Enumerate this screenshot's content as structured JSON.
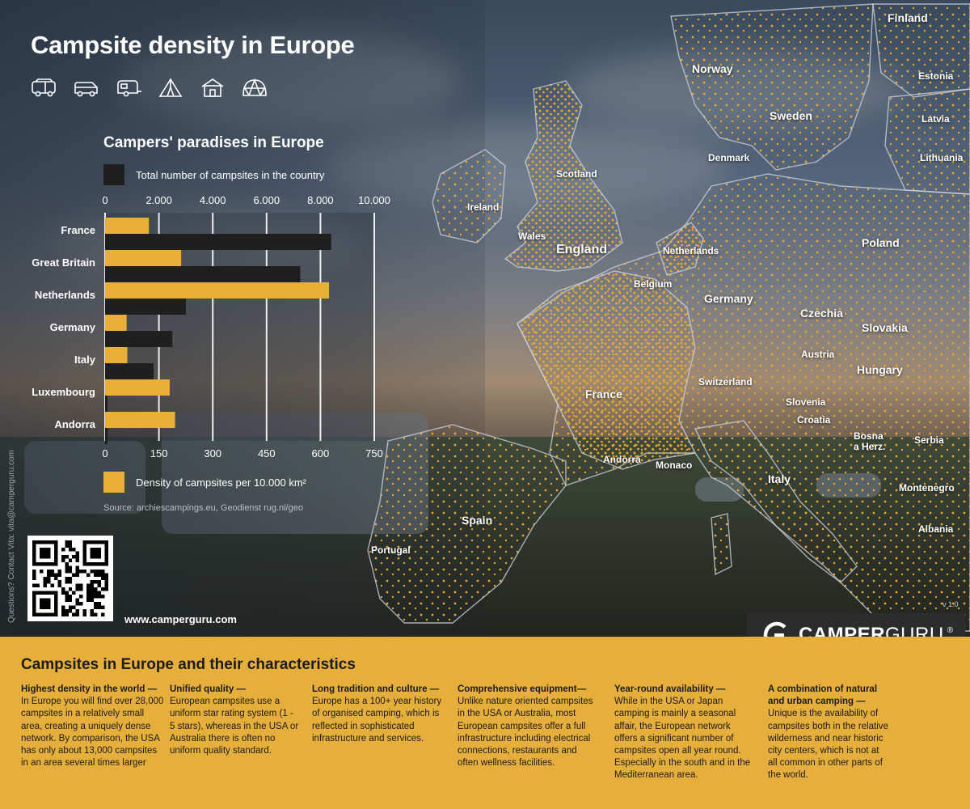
{
  "title": "Campsite density in Europe",
  "icons": [
    "camper-van-icon",
    "van-icon",
    "caravan-icon",
    "tent-icon",
    "cabin-icon",
    "glamping-dome-icon"
  ],
  "chart": {
    "title": "Campers' paradises in Europe",
    "legend_total": "Total number of campsites in the country",
    "legend_density": "Density of campsites per 10.000 km²",
    "source": "Source: archiescampings.eu, Geodienst rug.nl/geo"
  },
  "chart_data": {
    "type": "bar",
    "orientation": "horizontal",
    "categories": [
      "France",
      "Great Britain",
      "Netherlands",
      "Germany",
      "Italy",
      "Luxembourg",
      "Andorra"
    ],
    "series": [
      {
        "name": "Density of campsites per 10.000 km²",
        "color": "#e9b035",
        "values": [
          122,
          212,
          624,
          60,
          62,
          180,
          195
        ],
        "axis": "bottom"
      },
      {
        "name": "Total number of campsites in the country",
        "color": "#1f1f1f",
        "values": [
          8400,
          7250,
          3000,
          2500,
          1800,
          50,
          20
        ],
        "axis": "top"
      }
    ],
    "top_axis": {
      "ticks": [
        "0",
        "2.000",
        "4.000",
        "6.000",
        "8.000",
        "10.000"
      ],
      "range": [
        0,
        10000
      ]
    },
    "bottom_axis": {
      "ticks": [
        "0",
        "150",
        "300",
        "450",
        "600",
        "750"
      ],
      "range": [
        0,
        750
      ]
    }
  },
  "qr_url_text": "www.camperguru.com",
  "contact": "Questions? Contact Vita: vita@camperguru.com",
  "map_labels": {
    "finland": "Finland",
    "norway": "Norway",
    "estonia": "Estonia",
    "sweden": "Sweden",
    "latvia": "Latvia",
    "lithuania": "Lithuania",
    "denmark": "Denmark",
    "scotland": "Scotland",
    "ireland": "Ireland",
    "wales": "Wales",
    "england": "England",
    "netherlands": "Netherlands",
    "poland": "Poland",
    "belgium": "Belgium",
    "germany": "Germany",
    "czechia": "Czechia",
    "slovakia": "Slovakia",
    "austria": "Austria",
    "hungary": "Hungary",
    "switzerland": "Switzerland",
    "france": "France",
    "slovenia": "Slovenia",
    "croatia": "Croatia",
    "bosnia": "Bosna\na Herz.",
    "serbia": "Serbia",
    "andorra": "Andorra",
    "monaco": "Monaco",
    "italy": "Italy",
    "montenegro": "Montenegro",
    "spain": "Spain",
    "albania": "Albania",
    "portugal": "Portugal"
  },
  "version": "v 1.0",
  "brand": {
    "part1": "CAMPER",
    "part2": "GURU",
    "reg": "®"
  },
  "band": {
    "title": "Campsites in Europe and their characteristics",
    "columns": [
      {
        "heading": "Highest density in the world —",
        "text": "In Europe you will find over 28,000 campsites in a relatively small area, creating a uniquely dense network. By comparison, the USA has only about 13,000 campsites in an area several times larger"
      },
      {
        "heading": "Unified quality —",
        "text": "European campsites use a uniform star rating system (1 - 5 stars), whereas in the USA or Australia there is often no uniform quality standard."
      },
      {
        "heading": "Long tradition and culture —",
        "text": "Europe has a 100+ year history of organised camping, which is reflected in sophisticated infrastructure and services."
      },
      {
        "heading": "Comprehensive equipment—",
        "text": "Unlike nature oriented campsites in the USA or Australia, most European campsites offer a full infrastructure including electrical connections, restaurants and often wellness facilities."
      },
      {
        "heading": "Year-round availability —",
        "text": "While in the USA or Japan camping is mainly a seasonal affair, the European network offers a significant number of campsites open all year round. Especially in the south and in the Mediterranean area."
      },
      {
        "heading": "A combination of natural and urban camping —",
        "text": "Unique is the availability of campsites both in the relative wilderness and near historic city centers, which is not at all common in other parts of the world."
      }
    ]
  }
}
